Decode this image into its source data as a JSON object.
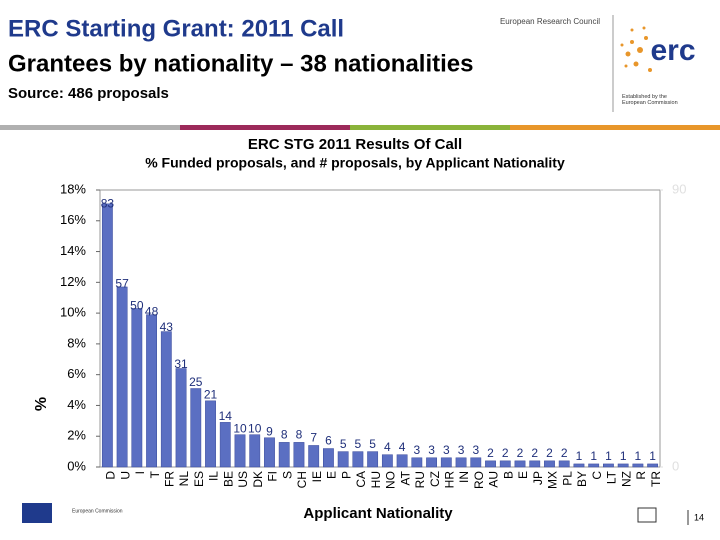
{
  "header": {
    "title_line1": "ERC Starting Grant: 2011 Call",
    "title_line2": "Grantees by nationality – 38 nationalities",
    "source": "Source: 486 proposals",
    "org": "European Research Council",
    "logo": "erc",
    "established": "Established by the European Commission"
  },
  "footer": {
    "commission": "European Commission",
    "page": "14"
  },
  "chart_data": {
    "type": "bar",
    "title": "ERC STG 2011 Results Of Call",
    "subtitle": "% Funded proposals, and # proposals, by Applicant Nationality",
    "y_label": "%",
    "x_label": "Applicant Nationality",
    "categories": [
      "D",
      "U",
      "I",
      "T",
      "FR",
      "NL",
      "ES",
      "IL",
      "BE",
      "US",
      "DK",
      "FI",
      "S",
      "CH",
      "IE",
      "E",
      "P",
      "CA",
      "HU",
      "NO",
      "AT",
      "RU",
      "CZ",
      "HR",
      "IN",
      "RO",
      "AU",
      "B",
      "E",
      "JP",
      "MX",
      "PL",
      "BY",
      "C",
      "LT",
      "NZ",
      "R",
      "TR"
    ],
    "series": [
      {
        "color": "#5b6fc2",
        "values": [
          17.1,
          11.7,
          10.3,
          9.9,
          8.8,
          6.4,
          5.1,
          4.3,
          2.9,
          2.1,
          2.1,
          1.9,
          1.6,
          1.6,
          1.4,
          1.2,
          1.0,
          1.0,
          1.0,
          0.8,
          0.8,
          0.6,
          0.6,
          0.6,
          0.6,
          0.6,
          0.4,
          0.4,
          0.4,
          0.4,
          0.4,
          0.4,
          0.2,
          0.2,
          0.2,
          0.2,
          0.2,
          0.2
        ]
      },
      {
        "color": "#1f2f7a",
        "axis": "y2",
        "values": [
          83,
          57,
          50,
          48,
          43,
          31,
          25,
          21,
          14,
          10,
          10,
          9,
          8,
          8,
          7,
          6,
          5,
          5,
          5,
          4,
          4,
          3,
          3,
          3,
          3,
          3,
          2,
          2,
          2,
          2,
          2,
          2,
          1,
          1,
          1,
          1,
          1,
          1
        ]
      }
    ],
    "ylim": [
      0,
      18
    ],
    "yticks": [
      {
        "value": 0,
        "label": "0%"
      },
      {
        "value": 2,
        "label": "2%"
      },
      {
        "value": 4,
        "label": "4%"
      },
      {
        "value": 6,
        "label": "6%"
      },
      {
        "value": 8,
        "label": "8%"
      },
      {
        "value": 10,
        "label": "10%"
      },
      {
        "value": 12,
        "label": "12%"
      },
      {
        "value": 14,
        "label": "14%"
      },
      {
        "value": 16,
        "label": "16%"
      },
      {
        "value": 18,
        "label": "18%"
      }
    ],
    "y2lim": [
      0,
      90
    ],
    "y2ticks": [
      0,
      90
    ]
  }
}
